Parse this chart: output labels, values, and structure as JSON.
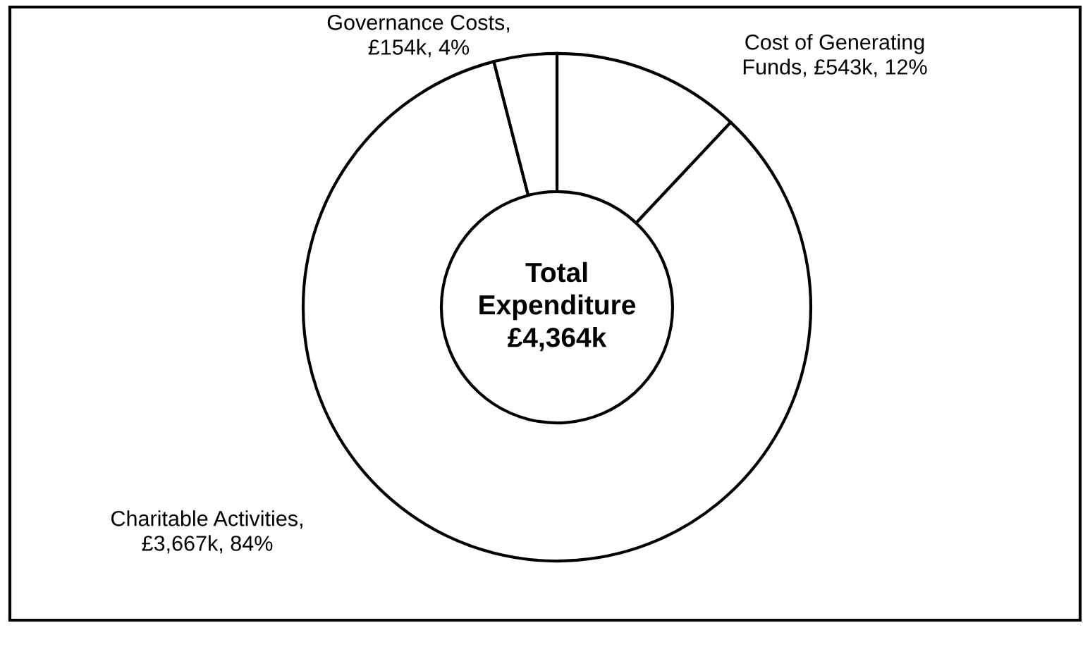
{
  "chart_data": {
    "type": "donut",
    "categories": [
      "Cost of Generating\nFunds, £543k",
      "Charitable Activities,\n£3,667k",
      "Governance Costs,\n£154k"
    ],
    "values": [
      12,
      84,
      4
    ],
    "value_labels": [
      "12%",
      "84%",
      "4%"
    ],
    "colors": [
      "#ffffff",
      "#ffffff",
      "#ffffff"
    ],
    "annotations": [
      "Total\nExpenditure\n£4,364k"
    ]
  }
}
